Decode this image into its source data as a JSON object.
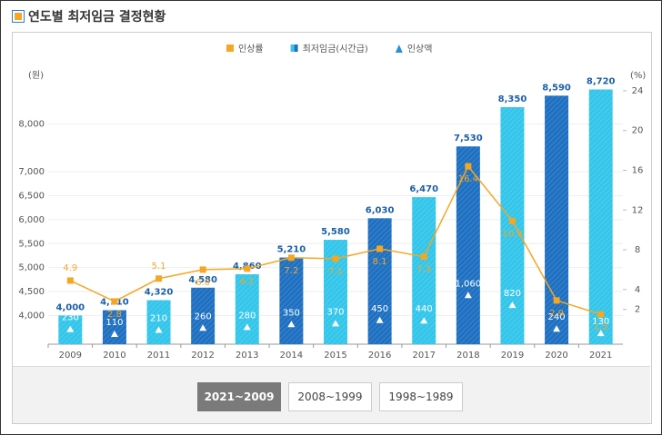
{
  "page": {
    "title": "연도별 최저임금 결정현황",
    "tabs": [
      "2021~2009",
      "2008~1999",
      "1998~1989"
    ],
    "active_tab": 0
  },
  "chart_data": {
    "type": "bar",
    "categories": [
      "2009",
      "2010",
      "2011",
      "2012",
      "2013",
      "2014",
      "2015",
      "2016",
      "2017",
      "2018",
      "2019",
      "2020",
      "2021"
    ],
    "y_label": "(원)",
    "y2_label": "(%)",
    "ylim": [
      3400,
      8900
    ],
    "yticks": [
      {
        "value": 4000,
        "label": "4,000"
      },
      {
        "value": 4500,
        "label": "4,500"
      },
      {
        "value": 5000,
        "label": "5,000"
      },
      {
        "value": 5500,
        "label": "5,500"
      },
      {
        "value": 6000,
        "label": "6,000"
      },
      {
        "value": 6500,
        "label": "6,500"
      },
      {
        "value": 7000,
        "label": "7,000"
      },
      {
        "value": 8000,
        "label": "8,000"
      }
    ],
    "y2lim": [
      -1.5,
      25
    ],
    "y2ticks": [
      2,
      4,
      8,
      12,
      16,
      20,
      24
    ],
    "grid": true,
    "series": [
      {
        "name": "인상률",
        "type": "line",
        "axis": "y2",
        "color": "#f5a623",
        "values": [
          4.9,
          2.8,
          5.1,
          6.0,
          6.1,
          7.2,
          7.1,
          8.1,
          7.3,
          16.4,
          10.9,
          2.9,
          1.5
        ],
        "value_labels": [
          "4.9",
          "2.8",
          "5.1",
          "6.0",
          "6.1",
          "7.2",
          "7.1",
          "8.1",
          "7.3",
          "16.4",
          "10.9",
          "2.9",
          "1.5"
        ]
      },
      {
        "name": "최저임금(시간급)",
        "type": "bar",
        "colors": [
          "#33c6ea",
          "#1e70c1"
        ],
        "values": [
          4000,
          4110,
          4320,
          4580,
          4860,
          5210,
          5580,
          6030,
          6470,
          7530,
          8350,
          8590,
          8720
        ],
        "value_labels": [
          "4,000",
          "4,110",
          "4,320",
          "4,580",
          "4,860",
          "5,210",
          "5,580",
          "6,030",
          "6,470",
          "7,530",
          "8,350",
          "8,590",
          "8,720"
        ]
      },
      {
        "name": "인상액",
        "type": "marker",
        "color": "#ffffff",
        "values": [
          230,
          110,
          210,
          260,
          280,
          350,
          370,
          450,
          440,
          1060,
          820,
          240,
          130
        ],
        "value_labels": [
          "230",
          "110",
          "210",
          "260",
          "280",
          "350",
          "370",
          "450",
          "440",
          "1,060",
          "820",
          "240",
          "130"
        ]
      }
    ]
  }
}
